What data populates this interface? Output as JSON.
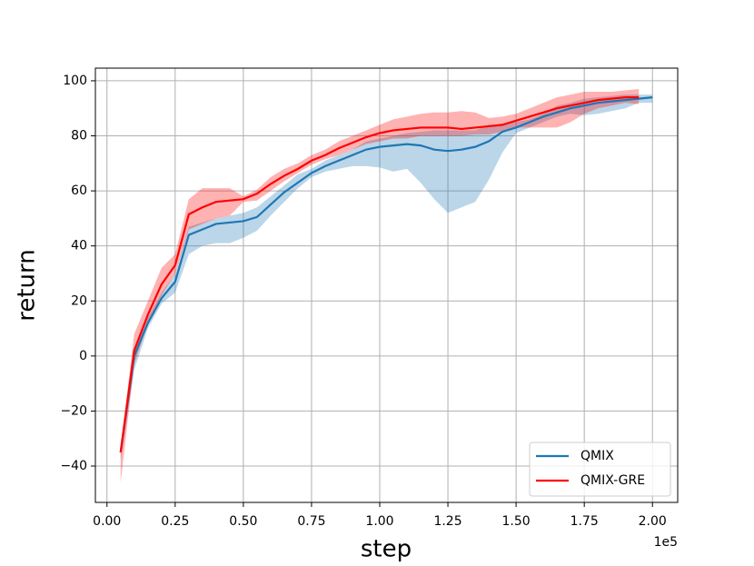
{
  "chart_data": {
    "type": "line",
    "x_label": "step",
    "y_label": "return",
    "x_offset_label": "1e5",
    "xlim": [
      -0.0425,
      2.0925
    ],
    "ylim": [
      -53.2,
      104.6
    ],
    "xticks": [
      {
        "value": 0,
        "label": "0.00"
      },
      0.25,
      {
        "value": 0.5,
        "label": "0.50"
      },
      0.75,
      {
        "value": 1,
        "label": "1.00"
      },
      1.25,
      {
        "value": 1.5,
        "label": "1.50"
      },
      1.75,
      {
        "value": 2,
        "label": "2.00"
      }
    ],
    "yticks": [
      {
        "value": -40,
        "label": "−40"
      },
      {
        "value": -20,
        "label": "−20"
      },
      0,
      20,
      40,
      60,
      80,
      100
    ],
    "grid": true,
    "legend": "lower right",
    "series": [
      {
        "name": "QMIX",
        "color": "#1f77b4",
        "x": [
          0.05,
          0.1,
          0.15,
          0.2,
          0.25,
          0.3,
          0.35,
          0.4,
          0.45,
          0.5,
          0.55,
          0.6,
          0.65,
          0.7,
          0.75,
          0.8,
          0.85,
          0.9,
          0.95,
          1.0,
          1.05,
          1.1,
          1.15,
          1.2,
          1.25,
          1.3,
          1.35,
          1.4,
          1.45,
          1.5,
          1.55,
          1.6,
          1.65,
          1.7,
          1.75,
          1.8,
          1.85,
          1.9,
          1.95,
          2.0
        ],
        "values": [
          -35,
          0,
          12,
          21,
          27,
          44,
          46,
          48,
          48.5,
          49,
          50.5,
          55,
          59.5,
          63,
          66.5,
          69,
          71,
          73,
          75,
          76,
          76.5,
          77,
          76.5,
          75,
          74.5,
          75,
          76,
          78,
          81.5,
          83,
          85,
          87,
          88.5,
          90,
          91,
          92,
          92.5,
          93,
          93.5,
          94
        ],
        "lower": [
          -38,
          -5,
          10,
          19,
          23,
          37,
          40,
          41,
          41,
          43,
          45.5,
          51,
          56,
          61,
          65,
          67,
          68,
          69,
          69,
          68.5,
          67,
          68,
          63,
          57,
          52,
          54,
          56,
          64,
          74,
          81,
          83,
          85,
          87,
          88,
          87.5,
          88,
          89,
          90,
          92,
          92
        ],
        "upper": [
          -32,
          3,
          14,
          23,
          30,
          47,
          48.5,
          50,
          51,
          52,
          54,
          58,
          62,
          66,
          68,
          71,
          73,
          75,
          78,
          79,
          80,
          81,
          81.5,
          82,
          82,
          82,
          82,
          84,
          84,
          85,
          86,
          88,
          91,
          92,
          93.5,
          94,
          94.5,
          95,
          95,
          95
        ]
      },
      {
        "name": "QMIX-GRE",
        "color": "#ff0000",
        "x": [
          0.05,
          0.1,
          0.15,
          0.2,
          0.25,
          0.3,
          0.35,
          0.4,
          0.45,
          0.5,
          0.55,
          0.6,
          0.65,
          0.7,
          0.75,
          0.8,
          0.85,
          0.9,
          0.95,
          1.0,
          1.05,
          1.1,
          1.15,
          1.2,
          1.25,
          1.3,
          1.35,
          1.4,
          1.45,
          1.5,
          1.55,
          1.6,
          1.65,
          1.7,
          1.75,
          1.8,
          1.85,
          1.9,
          1.95
        ],
        "values": [
          -35,
          2,
          15,
          26,
          33,
          51.5,
          54,
          56,
          56.5,
          57,
          59,
          62.5,
          65.5,
          68,
          71,
          73,
          75.5,
          77.5,
          79.5,
          81,
          82,
          82.5,
          83,
          83,
          83,
          82.5,
          83,
          83.5,
          84,
          85.5,
          87,
          88.5,
          90,
          91,
          92,
          93,
          93.5,
          94,
          94
        ],
        "lower": [
          -46,
          -3,
          12,
          22,
          30,
          46,
          48,
          50,
          51,
          56,
          56.5,
          60,
          63.5,
          66.5,
          69.5,
          71.5,
          73,
          75,
          77,
          78,
          79,
          79,
          80,
          80,
          80,
          80,
          80.5,
          80.5,
          81.5,
          83,
          83,
          83,
          83,
          85,
          88,
          90,
          91,
          92,
          91.5
        ],
        "upper": [
          -33,
          8,
          20,
          32,
          37,
          57,
          61,
          61,
          61,
          58,
          60.5,
          65,
          68,
          70,
          73,
          75,
          78,
          80,
          82,
          84,
          86,
          87,
          88,
          88.5,
          88.5,
          89,
          88.5,
          86.5,
          87,
          88,
          90,
          92,
          94,
          95,
          96,
          96,
          96,
          96.5,
          97
        ]
      }
    ]
  }
}
